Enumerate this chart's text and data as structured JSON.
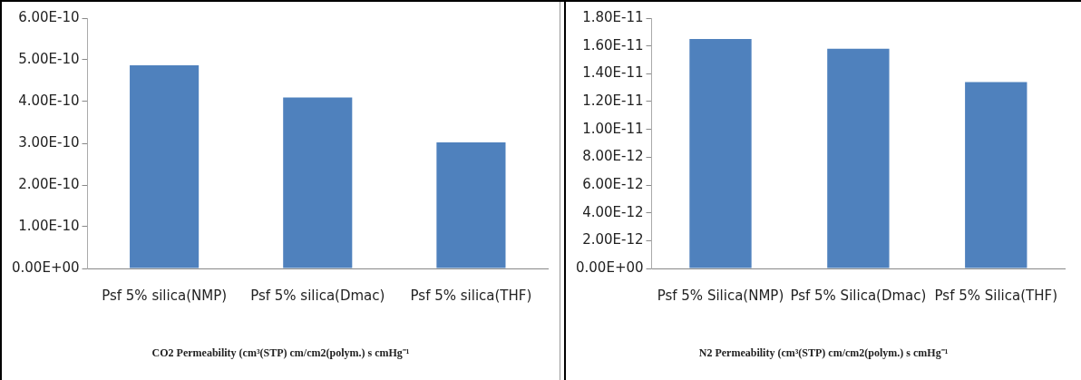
{
  "chart_data": [
    {
      "type": "bar",
      "xlabel": "CO2 Permeability (cm³(STP) cm/cm2(polym.) s cmHg⁻¹",
      "categories": [
        "Psf 5% silica(NMP)",
        "Psf 5% silica(Dmac)",
        "Psf 5% silica(THF)"
      ],
      "values": [
        4.87e-10,
        4.1e-10,
        3.02e-10
      ],
      "color": "#4f81bd",
      "ylim": [
        0,
        6e-10
      ],
      "yticks": [
        {
          "value": 0,
          "label": "0.00E+00"
        },
        {
          "value": 1e-10,
          "label": "1.00E-10"
        },
        {
          "value": 2e-10,
          "label": "2.00E-10"
        },
        {
          "value": 3e-10,
          "label": "3.00E-10"
        },
        {
          "value": 4e-10,
          "label": "4.00E-10"
        },
        {
          "value": 5e-10,
          "label": "5.00E-10"
        },
        {
          "value": 6e-10,
          "label": "6.00E-10"
        }
      ],
      "grid": false,
      "legend": false
    },
    {
      "type": "bar",
      "xlabel": "N2 Permeability (cm³(STP) cm/cm2(polym.) s cmHg⁻¹",
      "categories": [
        "Psf 5% Silica(NMP)",
        "Psf 5% Silica(Dmac)",
        "Psf 5% Silica(THF)"
      ],
      "values": [
        1.65e-11,
        1.58e-11,
        1.34e-11
      ],
      "color": "#4f81bd",
      "ylim": [
        0,
        1.8e-11
      ],
      "yticks": [
        {
          "value": 0,
          "label": "0.00E+00"
        },
        {
          "value": 2e-12,
          "label": "2.00E-12"
        },
        {
          "value": 4e-12,
          "label": "4.00E-12"
        },
        {
          "value": 6e-12,
          "label": "6.00E-12"
        },
        {
          "value": 8e-12,
          "label": "8.00E-12"
        },
        {
          "value": 1e-11,
          "label": "1.00E-11"
        },
        {
          "value": 1.2e-11,
          "label": "1.20E-11"
        },
        {
          "value": 1.4e-11,
          "label": "1.40E-11"
        },
        {
          "value": 1.6e-11,
          "label": "1.60E-11"
        },
        {
          "value": 1.8e-11,
          "label": "1.80E-11"
        }
      ],
      "grid": false,
      "legend": false
    }
  ]
}
